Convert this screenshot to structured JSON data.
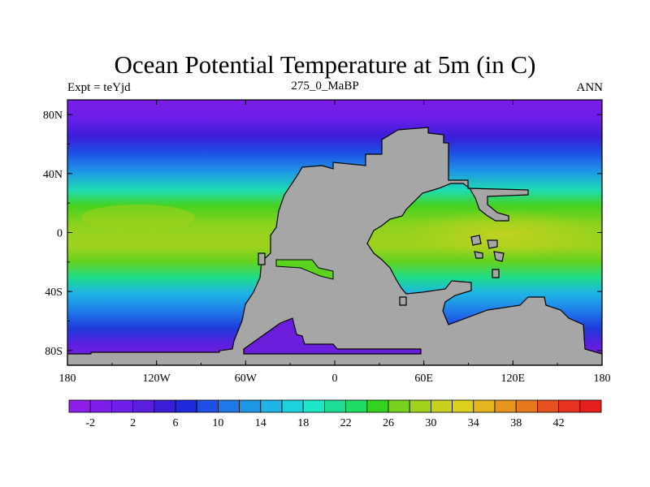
{
  "title": "Ocean Potential Temperature at 5m (in C)",
  "subtitle_left": "Expt = teYjd",
  "subtitle_center": "275_0_MaBP",
  "subtitle_right": "ANN",
  "map": {
    "lat_ticks": [
      "80N",
      "40N",
      "0",
      "40S",
      "80S"
    ],
    "lat_values": [
      80,
      40,
      0,
      -40,
      -80
    ],
    "lon_ticks": [
      "180",
      "120W",
      "60W",
      "0",
      "60E",
      "120E",
      "180"
    ],
    "lon_values": [
      -180,
      -120,
      -60,
      0,
      60,
      120,
      180
    ],
    "lat_range": [
      -90,
      90
    ],
    "lon_range": [
      -180,
      180
    ],
    "land_color": "#a6a6a6"
  },
  "colorbar": {
    "labels": [
      "-2",
      "2",
      "6",
      "10",
      "14",
      "18",
      "22",
      "26",
      "30",
      "34",
      "38",
      "42"
    ],
    "colors": [
      "#8c1ee6",
      "#7d1ee8",
      "#6e1ee8",
      "#5a1edc",
      "#3a1ed6",
      "#1e28dc",
      "#1e50e6",
      "#1e78e8",
      "#1e96e6",
      "#1eb4e6",
      "#1ed2dc",
      "#1ee6c8",
      "#1edc96",
      "#1edc64",
      "#32d21e",
      "#78d21e",
      "#a0d21e",
      "#c8d21e",
      "#dcd21e",
      "#e6b41e",
      "#e6961e",
      "#e6781e",
      "#e6501e",
      "#e6321e",
      "#e61e1e"
    ]
  }
}
